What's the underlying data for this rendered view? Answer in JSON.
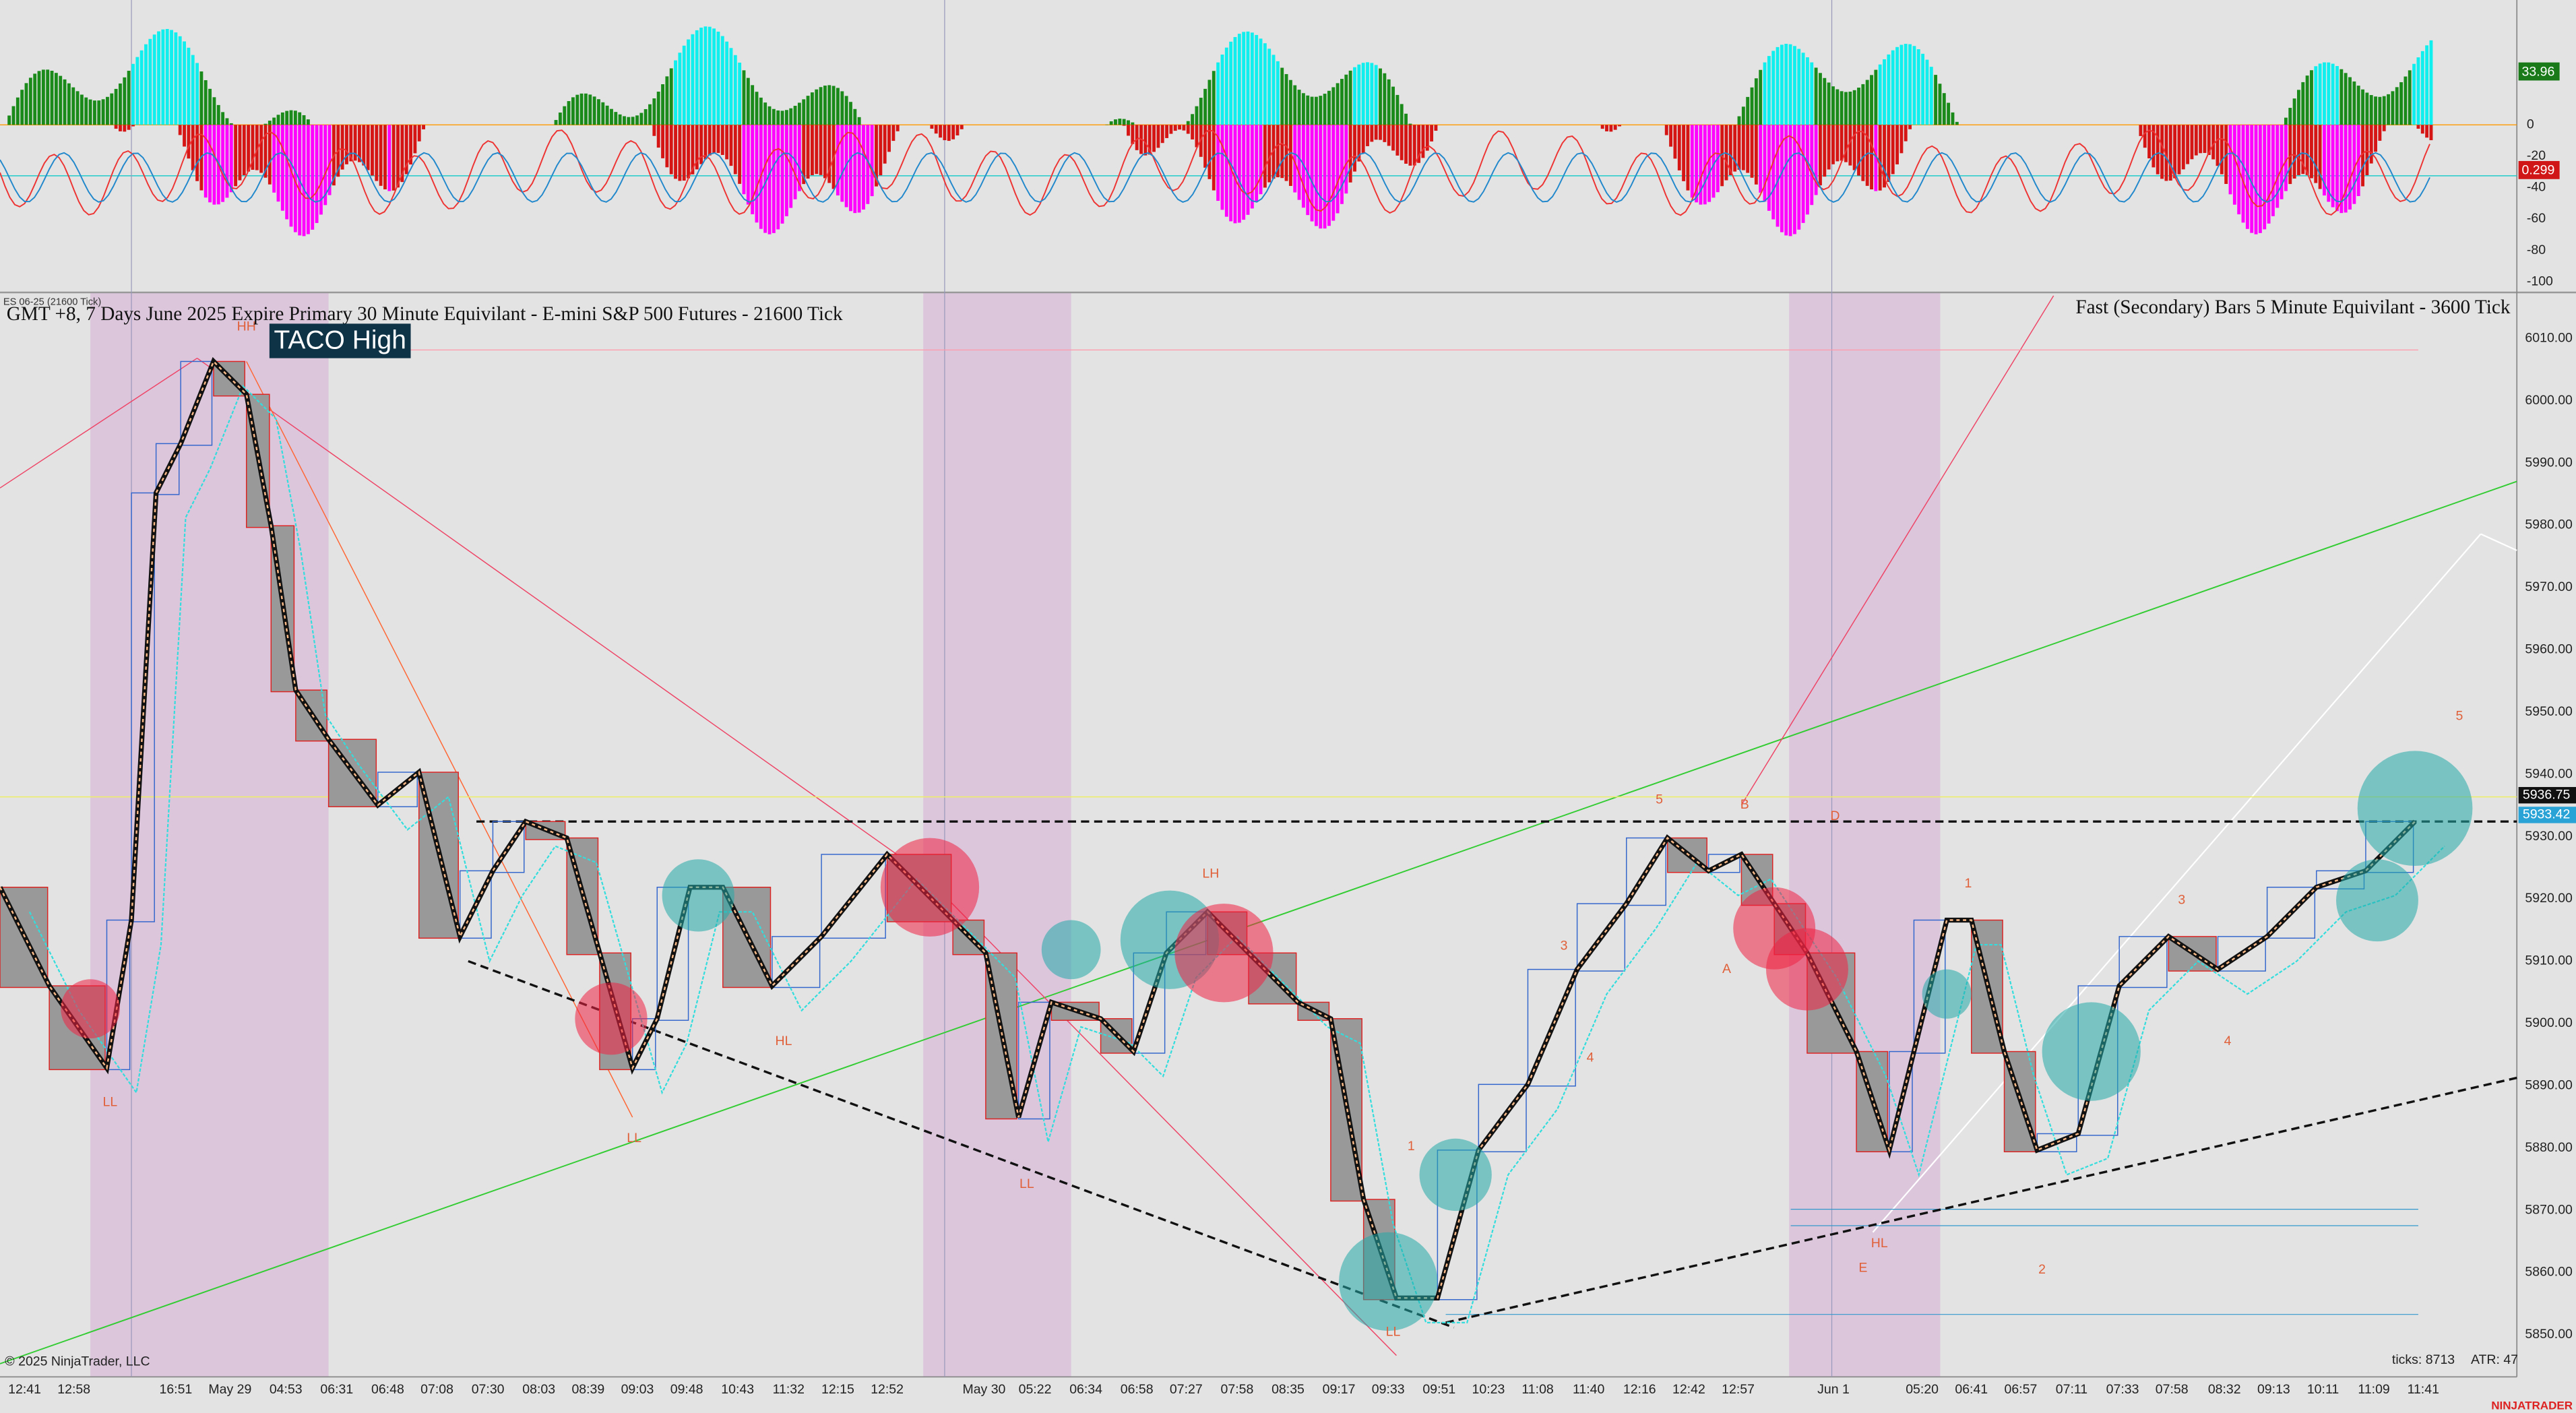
{
  "oscillator": {
    "scale_labels": [
      "0",
      "-20",
      "-40",
      "-60",
      "-80",
      "-100"
    ],
    "value_markers": [
      "33.96",
      "0.299"
    ]
  },
  "price_panel": {
    "instrument_label": "ES 06-25 (21600 Tick)",
    "title": "GMT +8, 7 Days June 2025 Expire Primary  30 Minute Equivilant - E-mini S&P 500 Futures - 21600 Tick",
    "secondary_title": "Fast (Secondary) Bars 5 Minute Equivilant - 3600 Tick",
    "annotation": "TACO High",
    "scale_labels": [
      "6010.00",
      "6000.00",
      "5990.00",
      "5980.00",
      "5970.00",
      "5960.00",
      "5950.00",
      "5940.00",
      "5930.00",
      "5920.00",
      "5910.00",
      "5900.00",
      "5890.00",
      "5880.00",
      "5870.00",
      "5860.00",
      "5850.00"
    ],
    "price_markers": [
      "5936.75",
      "5933.42"
    ],
    "pattern_labels": [
      "HH",
      "LL",
      "LL",
      "HL",
      "LL",
      "LH",
      "LL",
      "1",
      "3",
      "4",
      "5",
      "B",
      "D",
      "A",
      "E",
      "HL",
      "1",
      "2",
      "3",
      "4",
      "5"
    ]
  },
  "time_axis": {
    "labels": [
      "12:41",
      "12:58",
      "16:51",
      "May 29",
      "04:53",
      "06:31",
      "06:48",
      "07:08",
      "07:30",
      "08:03",
      "08:39",
      "09:03",
      "09:48",
      "10:43",
      "11:32",
      "12:15",
      "12:52",
      "May 30",
      "05:22",
      "06:34",
      "06:58",
      "07:27",
      "07:58",
      "08:35",
      "09:17",
      "09:33",
      "09:51",
      "10:23",
      "11:08",
      "11:40",
      "12:16",
      "12:42",
      "12:57",
      "Jun 1",
      "05:20",
      "06:41",
      "06:57",
      "07:11",
      "07:33",
      "07:58",
      "08:32",
      "09:13",
      "10:11",
      "11:09",
      "11:41"
    ]
  },
  "footer": {
    "copyright": "© 2025 NinjaTrader, LLC",
    "ticks": "ticks: 8713",
    "atr": "ATR: 47",
    "brand": "NINJATRADER"
  }
}
